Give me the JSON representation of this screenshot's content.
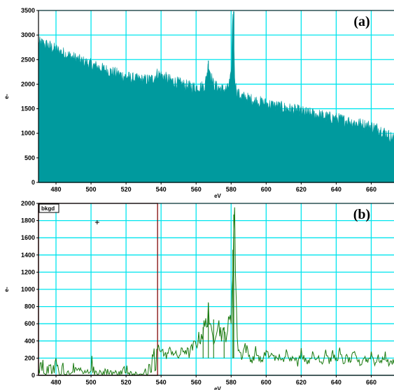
{
  "colors": {
    "grid": "#00e5ee",
    "fill_a": "#009a9e",
    "line_b": "#1a7a10",
    "bkgd_box": "#8b1a1a",
    "plot_bg": "#ffffff",
    "axis": "#000000"
  },
  "chart_data": [
    {
      "panel": "(a)",
      "type": "area",
      "title": "",
      "xlabel": "eV",
      "ylabel": "e-",
      "xlim": [
        470,
        673
      ],
      "ylim": [
        0,
        3500
      ],
      "grid": true,
      "x_ticks": [
        480,
        500,
        520,
        540,
        560,
        580,
        600,
        620,
        640,
        660
      ],
      "y_ticks": [
        0,
        500,
        1000,
        1500,
        2000,
        2500,
        3000,
        3500
      ],
      "x_tick_labels": [
        "480",
        "500",
        "520",
        "540",
        "560",
        "580",
        "600",
        "620",
        "640",
        "660"
      ],
      "y_tick_labels": [
        "0",
        "500",
        "1000",
        "1500",
        "2000",
        "2500",
        "3000",
        "3500"
      ],
      "series": [
        {
          "x": [
            470,
            473,
            476,
            480,
            485,
            490,
            495,
            500,
            505,
            510,
            515,
            520,
            525,
            530,
            535,
            538,
            540,
            545,
            550,
            555,
            560,
            565,
            567,
            570,
            575,
            578,
            580,
            581,
            582,
            583,
            585,
            590,
            595,
            600,
            605,
            610,
            615,
            620,
            625,
            630,
            635,
            640,
            645,
            650,
            655,
            660,
            665,
            670,
            673
          ],
          "values": [
            2850,
            2820,
            2780,
            2700,
            2620,
            2540,
            2460,
            2400,
            2330,
            2270,
            2210,
            2150,
            2100,
            2080,
            2100,
            2220,
            2180,
            2080,
            2020,
            1960,
            1930,
            1960,
            2400,
            1980,
            1890,
            1900,
            2150,
            3480,
            2200,
            1850,
            1760,
            1700,
            1650,
            1600,
            1560,
            1520,
            1480,
            1440,
            1400,
            1370,
            1330,
            1300,
            1260,
            1220,
            1180,
            1140,
            1080,
            960,
            880
          ]
        }
      ]
    },
    {
      "panel": "(b)",
      "type": "line",
      "title": "",
      "xlabel": "eV",
      "ylabel": "e-",
      "xlim": [
        470,
        673
      ],
      "ylim": [
        0,
        2000
      ],
      "grid": true,
      "x_ticks": [
        480,
        500,
        520,
        540,
        560,
        580,
        600,
        620,
        640,
        660
      ],
      "y_ticks": [
        0,
        200,
        400,
        600,
        800,
        1000,
        1200,
        1400,
        1600,
        1800,
        2000
      ],
      "x_tick_labels": [
        "480",
        "500",
        "520",
        "540",
        "560",
        "580",
        "600",
        "620",
        "640",
        "660"
      ],
      "y_tick_labels": [
        "0",
        "200",
        "400",
        "600",
        "800",
        "1000",
        "1200",
        "1400",
        "1600",
        "1800",
        "2000"
      ],
      "annotations": [
        {
          "text": "bkgd",
          "x_from": 470,
          "x_to": 538
        }
      ],
      "series": [
        {
          "x": [
            470,
            472,
            474,
            476,
            478,
            480,
            482,
            484,
            486,
            488,
            490,
            492,
            494,
            496,
            498,
            500,
            502,
            504,
            506,
            508,
            510,
            512,
            514,
            516,
            518,
            520,
            522,
            524,
            526,
            528,
            530,
            532,
            534,
            536,
            538,
            540,
            542,
            544,
            546,
            548,
            550,
            552,
            554,
            556,
            558,
            560,
            562,
            564,
            566,
            567,
            568,
            570,
            572,
            574,
            576,
            578,
            580,
            581,
            582,
            583,
            584,
            586,
            588,
            590,
            592,
            594,
            596,
            598,
            600,
            602,
            604,
            606,
            608,
            610,
            612,
            614,
            616,
            618,
            620,
            622,
            624,
            626,
            628,
            630,
            632,
            634,
            636,
            638,
            640,
            642,
            644,
            646,
            648,
            650,
            652,
            654,
            656,
            658,
            660,
            662,
            664,
            666,
            668,
            670,
            673
          ],
          "values": [
            80,
            220,
            40,
            150,
            60,
            180,
            20,
            120,
            40,
            90,
            180,
            30,
            100,
            20,
            60,
            240,
            30,
            80,
            20,
            50,
            90,
            10,
            40,
            20,
            60,
            150,
            30,
            10,
            20,
            50,
            80,
            20,
            200,
            260,
            310,
            330,
            220,
            260,
            300,
            240,
            220,
            280,
            300,
            250,
            320,
            380,
            430,
            520,
            600,
            840,
            500,
            440,
            620,
            520,
            450,
            540,
            660,
            1460,
            1870,
            700,
            320,
            220,
            350,
            240,
            160,
            280,
            200,
            150,
            300,
            200,
            260,
            170,
            230,
            140,
            310,
            180,
            250,
            120,
            280,
            200,
            150,
            250,
            180,
            220,
            140,
            300,
            160,
            240,
            180,
            270,
            140,
            210,
            160,
            240,
            190,
            120,
            220,
            160,
            260,
            140,
            200,
            150,
            240,
            130,
            170
          ]
        }
      ]
    }
  ]
}
